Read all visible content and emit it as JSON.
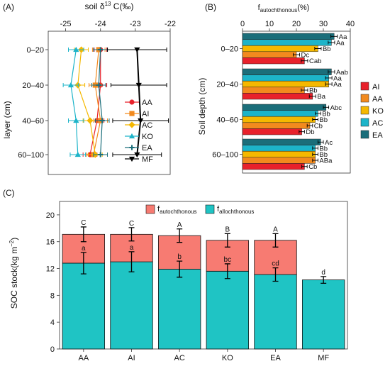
{
  "panels": {
    "a": "(A)",
    "b": "(B)",
    "c": "(C)"
  },
  "chart_data": [
    {
      "panel": "(A)",
      "type": "scatter",
      "xlabel_main": "soil δ",
      "xlabel_sup": "13",
      "xlabel_tail": " C(‰)",
      "ylabel": "layer (cm)",
      "xlim": [
        -25.5,
        -22
      ],
      "xticks": [
        "-25",
        "-24",
        "-23",
        "-22"
      ],
      "xtick_values": [
        -25,
        -24,
        -23,
        -22
      ],
      "categories": [
        "0–20",
        "20–40",
        "40–60",
        "60–100"
      ],
      "series": [
        {
          "name": "AA",
          "color": "#e8212b",
          "marker": "circle",
          "values": [
            -24.0,
            -24.0,
            -24.1,
            -24.3
          ],
          "err": [
            0.18,
            0.18,
            0.2,
            0.2
          ]
        },
        {
          "name": "AI",
          "color": "#f28a1e",
          "marker": "square",
          "values": [
            -24.05,
            -24.15,
            -24.0,
            -24.2
          ],
          "err": [
            0.18,
            0.18,
            0.2,
            0.2
          ]
        },
        {
          "name": "AC",
          "color": "#f5b800",
          "marker": "diamond",
          "values": [
            -24.55,
            -24.65,
            -24.3,
            -24.15
          ],
          "err": [
            0.2,
            0.2,
            0.2,
            0.2
          ]
        },
        {
          "name": "KO",
          "color": "#1db4c9",
          "marker": "triangle",
          "values": [
            -24.7,
            -24.85,
            -24.7,
            -24.65
          ],
          "err": [
            0.22,
            0.22,
            0.22,
            0.22
          ]
        },
        {
          "name": "EA",
          "color": "#1b6e7a",
          "marker": "plus",
          "values": [
            -24.0,
            -24.05,
            -23.95,
            -24.0
          ],
          "err": [
            0.2,
            0.2,
            0.2,
            0.2
          ]
        },
        {
          "name": "MF",
          "color": "#000000",
          "marker": "triangle-down",
          "values": [
            -22.95,
            -22.9,
            -22.85,
            -22.95
          ],
          "err": [
            0.85,
            0.8,
            0.8,
            0.7
          ]
        }
      ]
    },
    {
      "panel": "(B)",
      "type": "bar",
      "xlabel_main": "f",
      "xlabel_sub": "autochthonous",
      "xlabel_tail": "(%)",
      "ylabel": "Soil depth (cm)",
      "xlim": [
        0,
        40
      ],
      "xticks": [
        "0",
        "10",
        "20",
        "30",
        "40"
      ],
      "xtick_values": [
        0,
        10,
        20,
        30,
        40
      ],
      "categories": [
        "0–20",
        "20–40",
        "40–60",
        "60–100"
      ],
      "series": [
        {
          "name": "AI",
          "color": "#e8212b",
          "values": [
            23,
            26,
            22,
            23
          ],
          "err": [
            1.2,
            1.2,
            1.0,
            1.0
          ],
          "letters": [
            "Cab",
            "Ba",
            "Db",
            "Cb"
          ]
        },
        {
          "name": "AA",
          "color": "#f28a1e",
          "values": [
            20,
            23,
            25,
            27
          ],
          "err": [
            1.2,
            1.2,
            1.0,
            1.0
          ],
          "letters": [
            "Dc",
            "Bb",
            "Cb",
            "ABa"
          ]
        },
        {
          "name": "KO",
          "color": "#f5b800",
          "values": [
            28,
            32,
            27,
            27
          ],
          "err": [
            1.2,
            1.2,
            1.0,
            1.0
          ],
          "letters": [
            "Bb",
            "Aa",
            "Bb",
            "Bb"
          ]
        },
        {
          "name": "AC",
          "color": "#1db4c9",
          "values": [
            33,
            32,
            28,
            27
          ],
          "err": [
            1.2,
            1.2,
            1.0,
            1.0
          ],
          "letters": [
            "Aa",
            "Aa",
            "Bb",
            "Bb"
          ]
        },
        {
          "name": "EA",
          "color": "#1b6e7a",
          "values": [
            34,
            33,
            31,
            29
          ],
          "err": [
            1.2,
            1.2,
            1.0,
            1.0
          ],
          "letters": [
            "Aa",
            "Aab",
            "Abc",
            "Ac"
          ]
        }
      ]
    },
    {
      "panel": "(C)",
      "type": "bar",
      "stacked": true,
      "ylabel_main": "SOC stock(kg m",
      "ylabel_sup": "−2",
      "ylabel_tail": ")",
      "ylim": [
        0,
        22
      ],
      "yticks": [
        "0",
        "4",
        "8",
        "12",
        "16",
        "20"
      ],
      "ytick_values": [
        0,
        4,
        8,
        12,
        16,
        20
      ],
      "categories": [
        "AA",
        "AI",
        "AC",
        "KO",
        "EA",
        "MF"
      ],
      "series": [
        {
          "name_main": "f",
          "name_sub": "allochthonous",
          "color": "#1fc4c4",
          "values": [
            12.8,
            13.0,
            11.9,
            11.6,
            11.1,
            10.3
          ],
          "err": [
            1.6,
            1.5,
            1.2,
            1.1,
            1.0,
            0.5
          ],
          "letters": [
            "a",
            "a",
            "b",
            "bc",
            "cd",
            "d"
          ]
        },
        {
          "name_main": "f",
          "name_sub": "autochthonous",
          "color": "#f77b72",
          "values": [
            4.3,
            4.1,
            5.0,
            4.6,
            5.1,
            0
          ],
          "err": [
            1.1,
            1.0,
            1.0,
            1.0,
            1.0,
            0
          ],
          "letters": [
            "C",
            "C",
            "A",
            "B",
            "A",
            ""
          ]
        }
      ]
    }
  ]
}
